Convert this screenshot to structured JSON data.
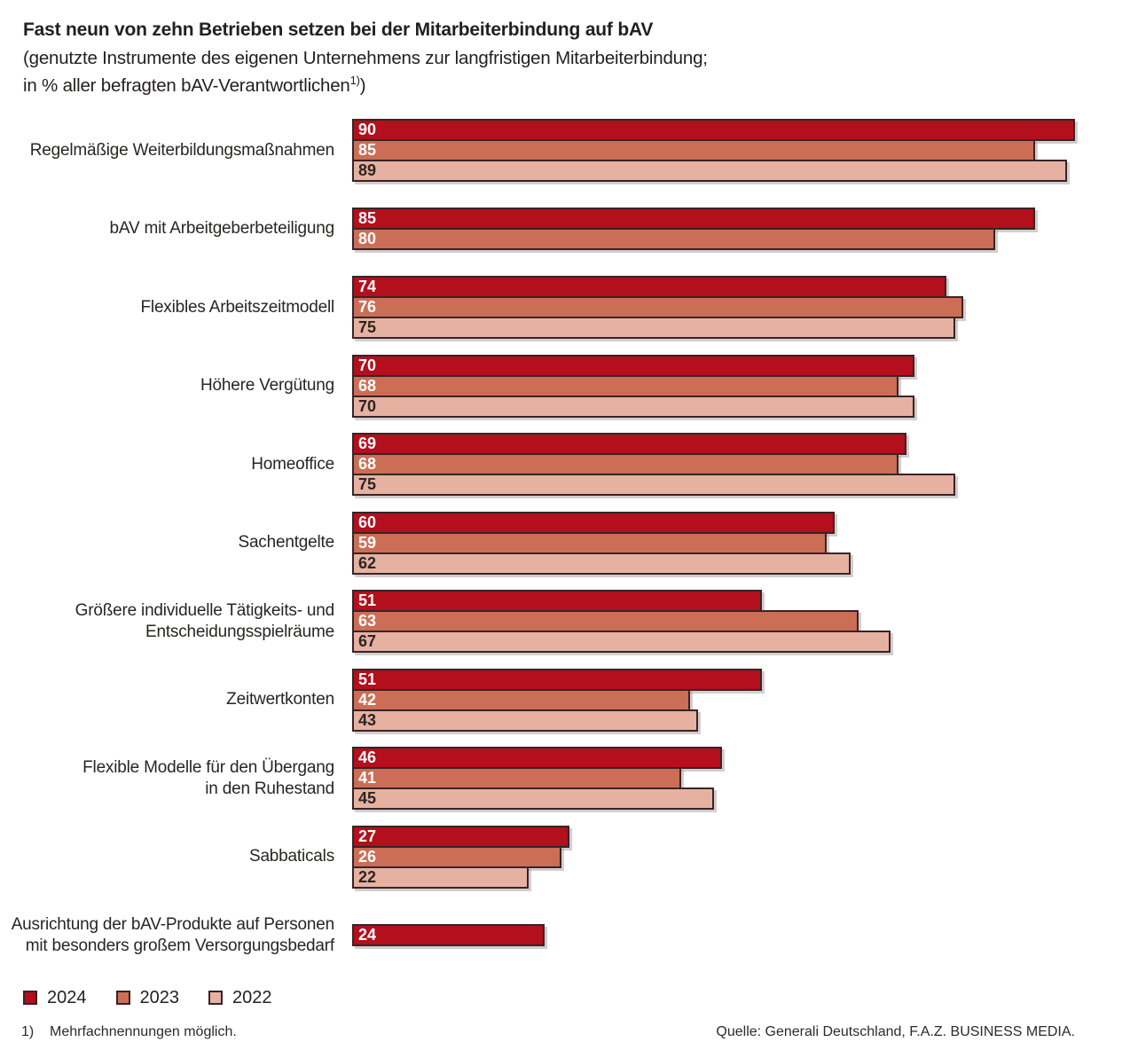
{
  "title": "Fast neun von zehn Betrieben setzen bei der Mitarbeiterbindung auf bAV",
  "subtitle_line1": "(genutzte Instrumente des eigenen Unternehmens zur langfristigen Mitarbeiterbindung;",
  "subtitle_line2_pre": "in % aller befragten bAV-Verantwortlichen",
  "subtitle_line2_sup": "1)",
  "subtitle_line2_close": ")",
  "legend": {
    "items": [
      {
        "label": "2024"
      },
      {
        "label": "2023"
      },
      {
        "label": "2022"
      }
    ]
  },
  "footnote": {
    "marker": "1)",
    "text": "Mehrfachnennungen möglich."
  },
  "source": "Quelle: Generali Deutschland, F.A.Z. BUSINESS MEDIA.",
  "chart_data": {
    "type": "bar",
    "orientation": "horizontal",
    "unit": "%",
    "xlim": [
      0,
      92
    ],
    "grid": false,
    "legend_position": "bottom-left",
    "series_names": [
      "2024",
      "2023",
      "2022"
    ],
    "series_meta": {
      "2024": {
        "color": "#B30F1C",
        "value_label_color": "#FFFFFF"
      },
      "2023": {
        "color": "#CB6E55",
        "value_label_color": "#FFFFFF"
      },
      "2022": {
        "color": "#E6B1A1",
        "value_label_color": "#2D2422"
      }
    },
    "rows": [
      {
        "label_lines": [
          "Regelmäßige Weiterbildungsmaßnahmen"
        ],
        "bars": [
          {
            "series": "2024",
            "value": 90
          },
          {
            "series": "2023",
            "value": 85
          },
          {
            "series": "2022",
            "value": 89
          }
        ]
      },
      {
        "label_lines": [
          "bAV mit Arbeitgeberbeteiligung"
        ],
        "bars": [
          {
            "series": "2024",
            "value": 85
          },
          {
            "series": "2023",
            "value": 80
          }
        ]
      },
      {
        "label_lines": [
          "Flexibles Arbeitszeitmodell"
        ],
        "bars": [
          {
            "series": "2024",
            "value": 74
          },
          {
            "series": "2023",
            "value": 76
          },
          {
            "series": "2022",
            "value": 75
          }
        ]
      },
      {
        "label_lines": [
          "Höhere Vergütung"
        ],
        "bars": [
          {
            "series": "2024",
            "value": 70
          },
          {
            "series": "2023",
            "value": 68
          },
          {
            "series": "2022",
            "value": 70
          }
        ]
      },
      {
        "label_lines": [
          "Homeoffice"
        ],
        "bars": [
          {
            "series": "2024",
            "value": 69
          },
          {
            "series": "2023",
            "value": 68
          },
          {
            "series": "2022",
            "value": 75
          }
        ]
      },
      {
        "label_lines": [
          "Sachentgelte"
        ],
        "bars": [
          {
            "series": "2024",
            "value": 60
          },
          {
            "series": "2023",
            "value": 59
          },
          {
            "series": "2022",
            "value": 62
          }
        ]
      },
      {
        "label_lines": [
          "Größere individuelle Tätigkeits- und",
          "Entscheidungsspielräume"
        ],
        "bars": [
          {
            "series": "2024",
            "value": 51
          },
          {
            "series": "2023",
            "value": 63
          },
          {
            "series": "2022",
            "value": 67
          }
        ]
      },
      {
        "label_lines": [
          "Zeitwertkonten"
        ],
        "bars": [
          {
            "series": "2024",
            "value": 51
          },
          {
            "series": "2023",
            "value": 42
          },
          {
            "series": "2022",
            "value": 43
          }
        ]
      },
      {
        "label_lines": [
          "Flexible Modelle für den Übergang",
          "in den Ruhestand"
        ],
        "bars": [
          {
            "series": "2024",
            "value": 46
          },
          {
            "series": "2023",
            "value": 41
          },
          {
            "series": "2022",
            "value": 45
          }
        ]
      },
      {
        "label_lines": [
          "Sabbaticals"
        ],
        "bars": [
          {
            "series": "2024",
            "value": 27
          },
          {
            "series": "2023",
            "value": 26
          },
          {
            "series": "2022",
            "value": 22
          }
        ]
      },
      {
        "label_lines": [
          "Ausrichtung der bAV-Produkte auf Personen",
          "mit besonders großem Versorgungsbedarf"
        ],
        "bars": [
          {
            "series": "2024",
            "value": 24
          }
        ]
      }
    ]
  }
}
